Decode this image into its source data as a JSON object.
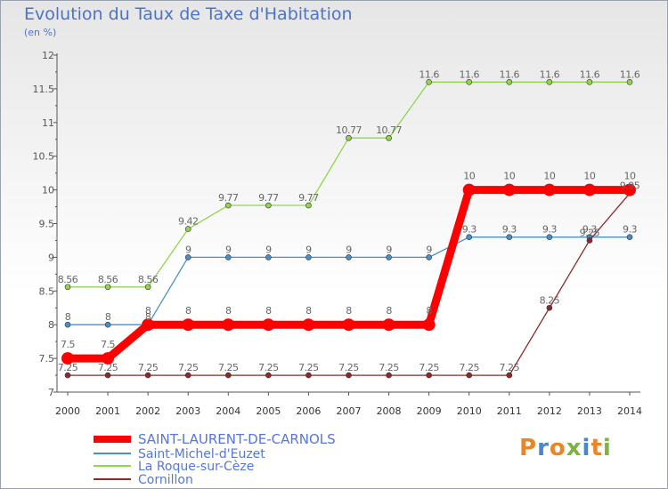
{
  "header": {
    "title": "Evolution du Taux de Taxe d'Habitation",
    "subtitle": "(en %)"
  },
  "logo": {
    "letters": [
      "P",
      "r",
      "o",
      "x",
      "i",
      "t",
      "i"
    ]
  },
  "chart_data": {
    "type": "line",
    "x": [
      2000,
      2001,
      2002,
      2003,
      2004,
      2005,
      2006,
      2007,
      2008,
      2009,
      2010,
      2011,
      2012,
      2013,
      2014
    ],
    "ylim": [
      7,
      12
    ],
    "yticks": [
      "7",
      "7.5",
      "8",
      "8.5",
      "9",
      "9.5",
      "10",
      "10.5",
      "11",
      "11.5",
      "12"
    ],
    "grid": false,
    "legend": "bottom-left",
    "series": [
      {
        "name": "SAINT-LAURENT-DE-CARNOLS",
        "color": "#ff0000",
        "values": [
          7.5,
          7.5,
          8,
          8,
          8,
          8,
          8,
          8,
          8,
          8,
          10,
          10,
          10,
          10,
          10
        ],
        "labels": [
          "7.5",
          "7.5",
          "8",
          "8",
          "8",
          "8",
          "8",
          "8",
          "8",
          "8",
          "10",
          "10",
          "10",
          "10",
          "10"
        ]
      },
      {
        "name": "Saint-Michel-d'Euzet",
        "color": "#4a90c8",
        "values": [
          8,
          8,
          8,
          9,
          9,
          9,
          9,
          9,
          9,
          9,
          9.3,
          9.3,
          9.3,
          9.3,
          9.3
        ],
        "labels": [
          "8",
          "8",
          "8",
          "9",
          "9",
          "9",
          "9",
          "9",
          "9",
          "9",
          "9.3",
          "9.3",
          "9.3",
          "9.3",
          "9.3"
        ]
      },
      {
        "name": "La Roque-sur-Cèze",
        "color": "#8fd64d",
        "values": [
          8.56,
          8.56,
          8.56,
          9.42,
          9.77,
          9.77,
          9.77,
          10.77,
          10.77,
          11.6,
          11.6,
          11.6,
          11.6,
          11.6,
          11.6
        ],
        "labels": [
          "8.56",
          "8.56",
          "8.56",
          "9.42",
          "9.77",
          "9.77",
          "9.77",
          "10.77",
          "10.77",
          "11.6",
          "11.6",
          "11.6",
          "11.6",
          "11.6",
          "11.6"
        ]
      },
      {
        "name": "Cornillon",
        "color": "#8b2a2a",
        "values": [
          7.25,
          7.25,
          7.25,
          7.25,
          7.25,
          7.25,
          7.25,
          7.25,
          7.25,
          7.25,
          7.25,
          7.25,
          8.25,
          9.25,
          9.95
        ],
        "labels": [
          "7.25",
          "7.25",
          "7.25",
          "7.25",
          "7.25",
          "7.25",
          "7.25",
          "7.25",
          "7.25",
          "7.25",
          "7.25",
          "7.25",
          "8.25",
          "9.25",
          "9.95"
        ]
      }
    ]
  }
}
